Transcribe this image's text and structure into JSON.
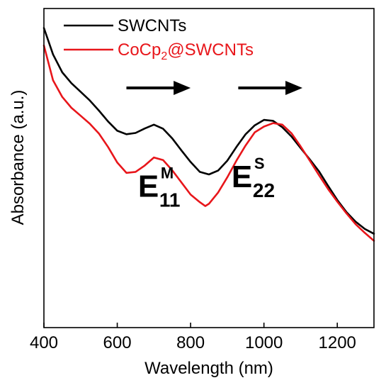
{
  "chart_data": {
    "type": "line",
    "xlabel": "Wavelength (nm)",
    "ylabel": "Absorbance (a.u.)",
    "xlim": [
      400,
      1300
    ],
    "ylim": [
      0,
      1
    ],
    "x_ticks": [
      "400",
      "600",
      "800",
      "1000",
      "1200"
    ],
    "y_ticks_shown": false,
    "grid": false,
    "legend_position": "top-left",
    "series": [
      {
        "name": "SWCNTs",
        "color": "#000000",
        "points": [
          [
            400,
            0.939
          ],
          [
            425,
            0.856
          ],
          [
            450,
            0.8
          ],
          [
            475,
            0.766
          ],
          [
            500,
            0.739
          ],
          [
            525,
            0.712
          ],
          [
            550,
            0.68
          ],
          [
            575,
            0.646
          ],
          [
            600,
            0.617
          ],
          [
            625,
            0.606
          ],
          [
            650,
            0.61
          ],
          [
            675,
            0.624
          ],
          [
            700,
            0.636
          ],
          [
            725,
            0.623
          ],
          [
            750,
            0.593
          ],
          [
            775,
            0.555
          ],
          [
            800,
            0.519
          ],
          [
            825,
            0.488
          ],
          [
            850,
            0.48
          ],
          [
            875,
            0.492
          ],
          [
            900,
            0.523
          ],
          [
            925,
            0.566
          ],
          [
            950,
            0.606
          ],
          [
            975,
            0.634
          ],
          [
            1000,
            0.651
          ],
          [
            1025,
            0.648
          ],
          [
            1050,
            0.628
          ],
          [
            1075,
            0.599
          ],
          [
            1100,
            0.563
          ],
          [
            1125,
            0.527
          ],
          [
            1150,
            0.49
          ],
          [
            1175,
            0.444
          ],
          [
            1200,
            0.4
          ],
          [
            1225,
            0.362
          ],
          [
            1250,
            0.332
          ],
          [
            1275,
            0.309
          ],
          [
            1300,
            0.294
          ]
        ]
      },
      {
        "name": "CoCp2@SWCNTs",
        "color": "#e8161b",
        "points": [
          [
            400,
            0.884
          ],
          [
            425,
            0.775
          ],
          [
            450,
            0.723
          ],
          [
            475,
            0.689
          ],
          [
            500,
            0.664
          ],
          [
            525,
            0.639
          ],
          [
            550,
            0.608
          ],
          [
            575,
            0.566
          ],
          [
            600,
            0.517
          ],
          [
            625,
            0.485
          ],
          [
            650,
            0.488
          ],
          [
            675,
            0.508
          ],
          [
            700,
            0.533
          ],
          [
            725,
            0.525
          ],
          [
            750,
            0.493
          ],
          [
            775,
            0.455
          ],
          [
            800,
            0.417
          ],
          [
            825,
            0.393
          ],
          [
            840,
            0.381
          ],
          [
            850,
            0.388
          ],
          [
            875,
            0.423
          ],
          [
            900,
            0.471
          ],
          [
            925,
            0.523
          ],
          [
            950,
            0.571
          ],
          [
            975,
            0.612
          ],
          [
            1000,
            0.63
          ],
          [
            1025,
            0.641
          ],
          [
            1050,
            0.636
          ],
          [
            1075,
            0.609
          ],
          [
            1100,
            0.568
          ],
          [
            1125,
            0.523
          ],
          [
            1150,
            0.478
          ],
          [
            1175,
            0.434
          ],
          [
            1200,
            0.395
          ],
          [
            1225,
            0.358
          ],
          [
            1250,
            0.324
          ],
          [
            1275,
            0.297
          ],
          [
            1300,
            0.272
          ]
        ]
      }
    ],
    "legend": [
      {
        "name": "SWCNTs",
        "text": "SWCNTs",
        "sub": "",
        "tail": "",
        "color": "#000000"
      },
      {
        "name": "CoCp2@SWCNTs",
        "text": "CoCp",
        "sub": "2",
        "tail": "@SWCNTs",
        "color": "#e8161b"
      }
    ],
    "annotations": {
      "e11m": {
        "base": "E",
        "sup": "M",
        "sub": "11",
        "x": 730,
        "y": 0.41
      },
      "e22s": {
        "base": "E",
        "sup": "S",
        "sub": "22",
        "x": 985,
        "y": 0.44
      },
      "arrows": [
        {
          "x1": 625,
          "x2": 800,
          "y": 0.751
        },
        {
          "x1": 930,
          "x2": 1105,
          "y": 0.751
        }
      ]
    }
  }
}
